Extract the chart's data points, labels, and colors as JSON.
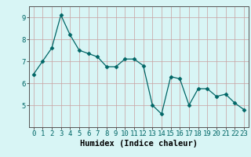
{
  "x": [
    0,
    1,
    2,
    3,
    4,
    5,
    6,
    7,
    8,
    9,
    10,
    11,
    12,
    13,
    14,
    15,
    16,
    17,
    18,
    19,
    20,
    21,
    22,
    23
  ],
  "y": [
    6.4,
    7.0,
    7.6,
    9.1,
    8.2,
    7.5,
    7.35,
    7.2,
    6.75,
    6.75,
    7.1,
    7.1,
    6.8,
    5.0,
    4.6,
    6.3,
    6.2,
    5.0,
    5.75,
    5.75,
    5.4,
    5.5,
    5.1,
    4.8
  ],
  "line_color": "#006666",
  "marker": "D",
  "marker_size": 2.5,
  "bg_color": "#d8f5f5",
  "grid_color_h": "#c8a0a0",
  "grid_color_v": "#c8a0a0",
  "xlabel": "Humidex (Indice chaleur)",
  "xlim": [
    -0.5,
    23.5
  ],
  "ylim": [
    4.0,
    9.5
  ],
  "yticks": [
    5,
    6,
    7,
    8,
    9
  ],
  "xticks": [
    0,
    1,
    2,
    3,
    4,
    5,
    6,
    7,
    8,
    9,
    10,
    11,
    12,
    13,
    14,
    15,
    16,
    17,
    18,
    19,
    20,
    21,
    22,
    23
  ],
  "xlabel_fontsize": 7.5,
  "tick_fontsize": 6.5
}
